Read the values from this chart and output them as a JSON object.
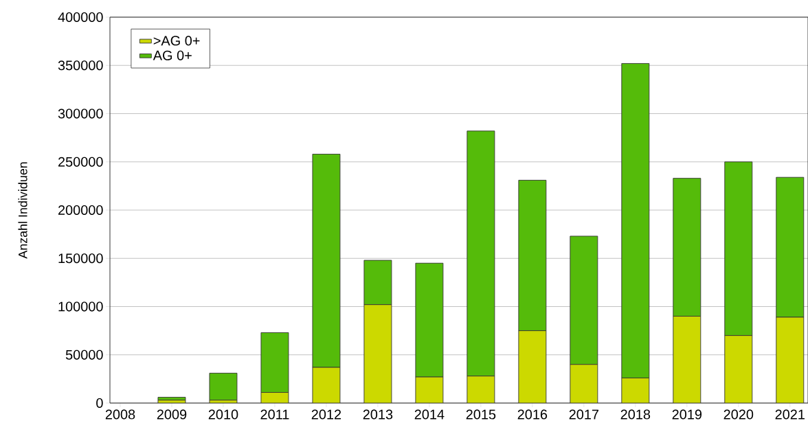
{
  "chart_data": {
    "type": "bar",
    "stacked": true,
    "ylabel": "Anzahl Individuen",
    "categories": [
      "2008",
      "2009",
      "2010",
      "2011",
      "2012",
      "2013",
      "2014",
      "2015",
      "2016",
      "2017",
      "2018",
      "2019",
      "2020",
      "2021"
    ],
    "series": [
      {
        "name": ">AG 0+",
        "color": "#ccd900",
        "values": [
          0,
          3000,
          3000,
          11000,
          37000,
          102000,
          27000,
          28000,
          75000,
          40000,
          26000,
          90000,
          70000,
          89000
        ]
      },
      {
        "name": "AG 0+",
        "color": "#55bb0a",
        "values": [
          0,
          3000,
          28000,
          62000,
          221000,
          46000,
          118000,
          254000,
          156000,
          133000,
          326000,
          143000,
          180000,
          145000
        ]
      }
    ],
    "ylim": [
      0,
      400000
    ],
    "yticks": [
      0,
      50000,
      100000,
      150000,
      200000,
      250000,
      300000,
      350000,
      400000
    ],
    "grid": "y",
    "legend": "top left"
  }
}
